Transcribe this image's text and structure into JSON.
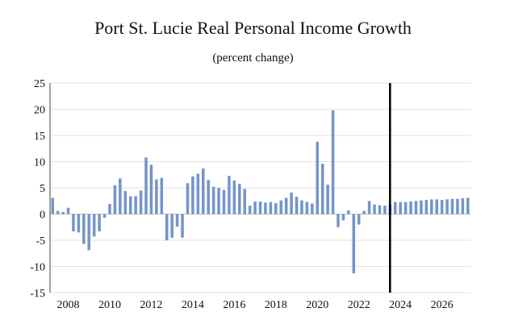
{
  "chart_data": {
    "type": "bar",
    "title": "Port St. Lucie Real Personal Income Growth",
    "subtitle": "(percent change)",
    "xlabel": "",
    "ylabel": "",
    "ylim": [
      -15,
      25
    ],
    "yticks": [
      -15,
      -10,
      -5,
      0,
      5,
      10,
      15,
      20,
      25
    ],
    "xtick_labels": [
      "2008",
      "2010",
      "2012",
      "2014",
      "2016",
      "2018",
      "2020",
      "2022",
      "2024",
      "2026"
    ],
    "grid": "horizontal",
    "bar_color": "#7595c9",
    "divider_color": "#000000",
    "divider_at": "2023Q3",
    "series": [
      {
        "x": [
          "2007Q2",
          "2007Q3",
          "2007Q4",
          "2008Q1",
          "2008Q2",
          "2008Q3",
          "2008Q4",
          "2009Q1",
          "2009Q2",
          "2009Q3",
          "2009Q4",
          "2010Q1",
          "2010Q2",
          "2010Q3",
          "2010Q4",
          "2011Q1",
          "2011Q2",
          "2011Q3",
          "2011Q4",
          "2012Q1",
          "2012Q2",
          "2012Q3",
          "2012Q4",
          "2013Q1",
          "2013Q2",
          "2013Q3",
          "2013Q4",
          "2014Q1",
          "2014Q2",
          "2014Q3",
          "2014Q4",
          "2015Q1",
          "2015Q2",
          "2015Q3",
          "2015Q4",
          "2016Q1",
          "2016Q2",
          "2016Q3",
          "2016Q4",
          "2017Q1",
          "2017Q2",
          "2017Q3",
          "2017Q4",
          "2018Q1",
          "2018Q2",
          "2018Q3",
          "2018Q4",
          "2019Q1",
          "2019Q2",
          "2019Q3",
          "2019Q4",
          "2020Q1",
          "2020Q2",
          "2020Q3",
          "2020Q4",
          "2021Q1",
          "2021Q2",
          "2021Q3",
          "2021Q4",
          "2022Q1",
          "2022Q2",
          "2022Q3",
          "2022Q4",
          "2023Q1",
          "2023Q2",
          "2023Q3",
          "2023Q4",
          "2024Q1",
          "2024Q2",
          "2024Q3",
          "2024Q4",
          "2025Q1",
          "2025Q2",
          "2025Q3",
          "2025Q4",
          "2026Q1",
          "2026Q2",
          "2026Q3",
          "2026Q4",
          "2027Q1",
          "2027Q2"
        ],
        "values": [
          3.1,
          0.6,
          0.4,
          1.2,
          -3.3,
          -3.5,
          -5.7,
          -6.9,
          -4.3,
          -3.3,
          -0.7,
          1.9,
          5.5,
          6.8,
          4.4,
          3.4,
          3.4,
          4.5,
          10.8,
          9.4,
          6.6,
          6.9,
          -5.0,
          -4.5,
          -2.4,
          -4.5,
          5.9,
          7.2,
          7.7,
          8.7,
          6.5,
          5.2,
          5.0,
          4.6,
          7.3,
          6.4,
          5.8,
          4.8,
          1.6,
          2.4,
          2.4,
          2.2,
          2.3,
          2.1,
          2.6,
          3.1,
          4.1,
          3.3,
          2.6,
          2.3,
          2.0,
          13.8,
          9.6,
          5.6,
          19.8,
          -2.5,
          -1.2,
          0.7,
          -11.3,
          -2.0,
          0.6,
          2.5,
          1.8,
          1.7,
          1.6,
          1.8,
          2.3,
          2.3,
          2.3,
          2.4,
          2.5,
          2.6,
          2.7,
          2.8,
          2.8,
          2.7,
          2.8,
          2.9,
          2.9,
          3.0,
          3.1
        ]
      }
    ]
  }
}
